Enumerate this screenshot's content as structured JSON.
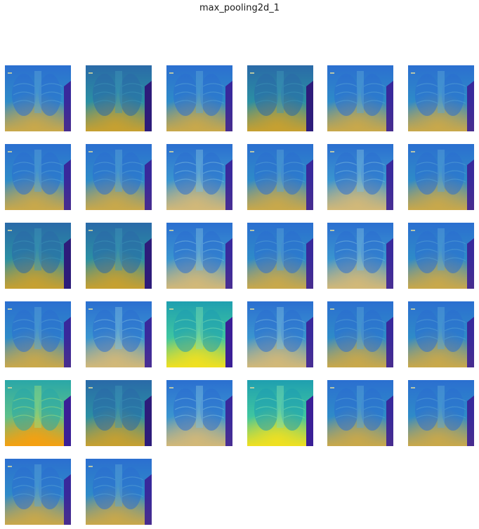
{
  "figure": {
    "title": "max_pooling2d_1"
  },
  "feature_maps": [
    {
      "variant": "base"
    },
    {
      "variant": "dark"
    },
    {
      "variant": "base"
    },
    {
      "variant": "dark"
    },
    {
      "variant": "base"
    },
    {
      "variant": "base"
    },
    {
      "variant": "base"
    },
    {
      "variant": "base"
    },
    {
      "variant": "edge"
    },
    {
      "variant": "base"
    },
    {
      "variant": "edge"
    },
    {
      "variant": "base"
    },
    {
      "variant": "dark"
    },
    {
      "variant": "dark"
    },
    {
      "variant": "edge"
    },
    {
      "variant": "base"
    },
    {
      "variant": "edge"
    },
    {
      "variant": "base"
    },
    {
      "variant": "base"
    },
    {
      "variant": "edge"
    },
    {
      "variant": "bright"
    },
    {
      "variant": "edge"
    },
    {
      "variant": "base"
    },
    {
      "variant": "base"
    },
    {
      "variant": "hot"
    },
    {
      "variant": "dark"
    },
    {
      "variant": "edge"
    },
    {
      "variant": "bright"
    },
    {
      "variant": "base"
    },
    {
      "variant": "base"
    },
    {
      "variant": "base"
    },
    {
      "variant": "base"
    }
  ],
  "colormap": {
    "name": "viridis",
    "colors": {
      "deep_purple": "#3a1f96",
      "blue": "#2b6fd0",
      "teal": "#1f9fb0",
      "gold": "#c9a84a",
      "yellow": "#f0e020",
      "orange": "#f5a010"
    }
  }
}
